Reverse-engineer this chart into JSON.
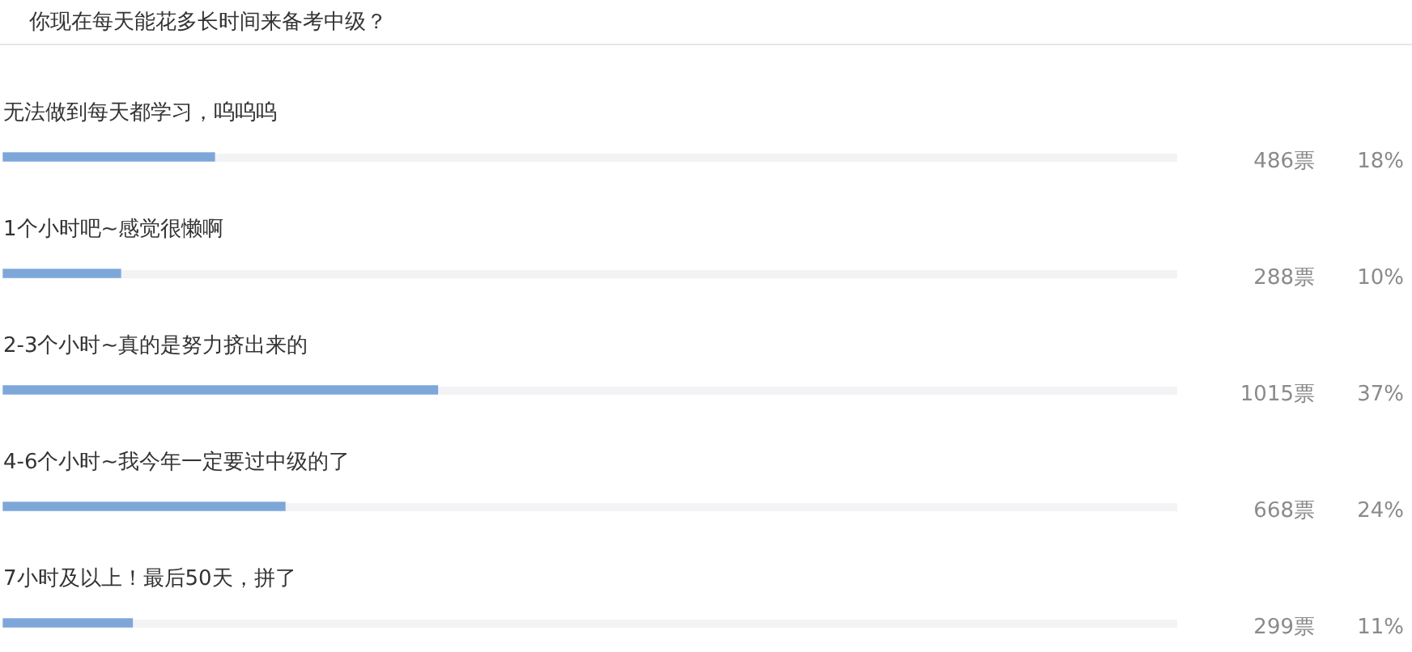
{
  "chart_data": {
    "type": "bar",
    "orientation": "horizontal",
    "title": "你现在每天能花多长时间来备考中级？",
    "categories": [
      "无法做到每天都学习，呜呜呜",
      "1个小时吧~感觉很懒啊",
      "2-3个小时~真的是努力挤出来的",
      "4-6个小时~我今年一定要过中级的了",
      "7小时及以上！最后50天，拼了"
    ],
    "values": [
      18,
      10,
      37,
      24,
      11
    ],
    "value_labels": [
      "18%",
      "10%",
      "37%",
      "24%",
      "11%"
    ],
    "color": "#7da7d9",
    "xlim": [
      0,
      100
    ],
    "tick_labels": "y",
    "annotations": [
      "486票",
      "288票",
      "1015票",
      "668票",
      "299票"
    ]
  }
}
